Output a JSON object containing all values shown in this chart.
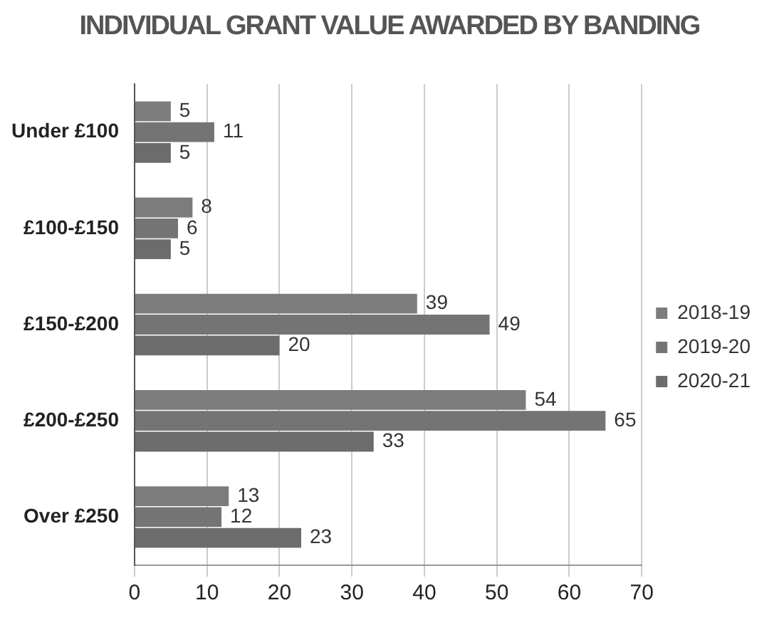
{
  "chart_data": {
    "type": "bar",
    "orientation": "horizontal",
    "title": "INDIVIDUAL GRANT VALUE AWARDED BY BANDING",
    "categories": [
      "Under £100",
      "£100-£150",
      "£150-£200",
      "£200-£250",
      "Over £250"
    ],
    "series": [
      {
        "name": "2018-19",
        "color": "#7c7c7c",
        "values": [
          5,
          8,
          39,
          54,
          13
        ]
      },
      {
        "name": "2019-20",
        "color": "#747474",
        "values": [
          11,
          6,
          49,
          65,
          12
        ]
      },
      {
        "name": "2020-21",
        "color": "#6c6c6c",
        "values": [
          5,
          5,
          20,
          33,
          23
        ]
      }
    ],
    "xlim": [
      0,
      70
    ],
    "xticks": [
      0,
      10,
      20,
      30,
      40,
      50,
      60,
      70
    ],
    "grid": "x",
    "legend": "right",
    "data_labels": true
  }
}
